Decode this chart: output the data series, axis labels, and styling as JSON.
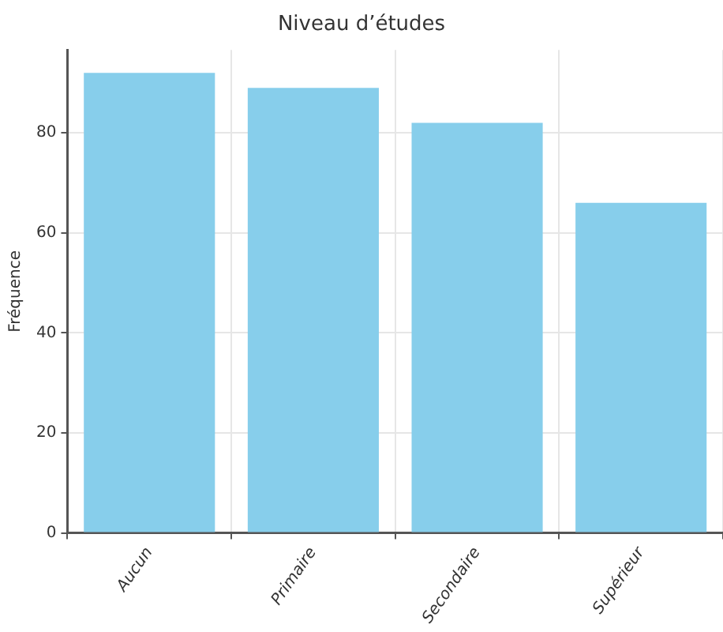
{
  "chart_data": {
    "type": "bar",
    "title": "Niveau d’études",
    "ylabel": "Fréquence",
    "categories": [
      "Aucun",
      "Primaire",
      "Secondaire",
      "Supérieur"
    ],
    "values": [
      92,
      89,
      82,
      66
    ],
    "color": "#87ceeb",
    "ylim": [
      0,
      96.6
    ],
    "yticks": [
      0,
      20,
      40,
      60,
      80
    ],
    "grid": true
  }
}
